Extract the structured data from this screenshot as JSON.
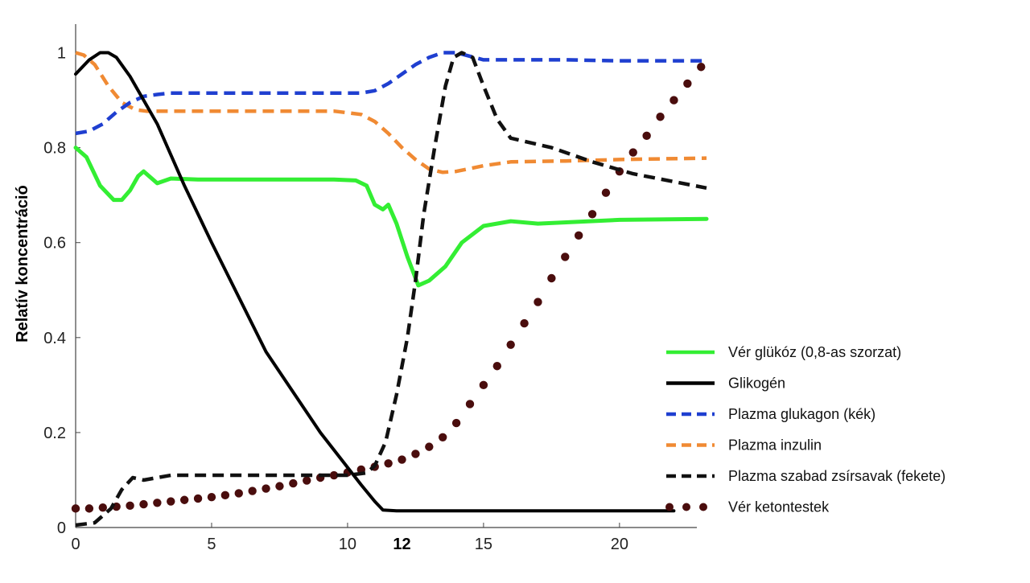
{
  "chart_data": {
    "type": "line",
    "title": "",
    "xlabel": "",
    "ylabel": "Relatív koncentráció",
    "xlim": [
      0,
      23.2
    ],
    "ylim": [
      0,
      1.05
    ],
    "x_ticks": [
      0,
      5,
      10,
      15,
      20
    ],
    "x_tick_labels": [
      "0",
      "5",
      "10",
      "15",
      "20"
    ],
    "x_marker": {
      "value": 12,
      "label": "12"
    },
    "y_ticks": [
      0,
      0.2,
      0.4,
      0.6,
      0.8,
      1
    ],
    "y_tick_labels": [
      "0",
      "0.2",
      "0.4",
      "0.6",
      "0.8",
      "1"
    ],
    "grid": false,
    "legend_position": "right",
    "series": [
      {
        "name": "Vér glükóz (0,8-as szorzat)",
        "color": "#33ee33",
        "style": "solid",
        "x": [
          0,
          0.4,
          0.9,
          1.4,
          1.7,
          2.0,
          2.3,
          2.5,
          2.7,
          3.0,
          3.5,
          4.5,
          7,
          9.5,
          10.3,
          10.7,
          11.0,
          11.3,
          11.5,
          11.8,
          12.2,
          12.6,
          13.0,
          13.6,
          14.2,
          15.0,
          16.0,
          17.0,
          20.0,
          23.2
        ],
        "y": [
          0.8,
          0.78,
          0.72,
          0.69,
          0.69,
          0.71,
          0.74,
          0.75,
          0.74,
          0.725,
          0.735,
          0.733,
          0.733,
          0.733,
          0.731,
          0.72,
          0.68,
          0.67,
          0.68,
          0.64,
          0.57,
          0.51,
          0.52,
          0.55,
          0.6,
          0.635,
          0.645,
          0.64,
          0.648,
          0.65
        ]
      },
      {
        "name": "Glikogén",
        "color": "#000000",
        "style": "solid",
        "x": [
          0,
          0.5,
          0.9,
          1.2,
          1.5,
          2.0,
          3.0,
          4.0,
          5.0,
          7.0,
          9.0,
          10.5,
          11.0,
          11.3,
          11.8,
          12.5,
          14.0,
          18.0,
          21.0,
          22.0
        ],
        "y": [
          0.955,
          0.985,
          1.0,
          1.0,
          0.99,
          0.95,
          0.85,
          0.72,
          0.6,
          0.37,
          0.2,
          0.09,
          0.055,
          0.037,
          0.035,
          0.035,
          0.035,
          0.035,
          0.035,
          0.035
        ]
      },
      {
        "name": "Plazma glukagon (kék)",
        "color": "#1f3fd0",
        "style": "dashed",
        "x": [
          0,
          0.5,
          1.0,
          1.5,
          2.0,
          2.5,
          3.0,
          3.5,
          5,
          8,
          10.5,
          11.0,
          11.5,
          12.0,
          12.5,
          13.0,
          13.5,
          14.0,
          15.0,
          18.0,
          20.0,
          23.2
        ],
        "y": [
          0.83,
          0.835,
          0.85,
          0.875,
          0.895,
          0.908,
          0.912,
          0.915,
          0.915,
          0.915,
          0.915,
          0.92,
          0.935,
          0.955,
          0.975,
          0.99,
          1.0,
          1.0,
          0.985,
          0.985,
          0.983,
          0.983
        ]
      },
      {
        "name": "Plazma inzulin",
        "color": "#f08a33",
        "style": "dashed",
        "x": [
          0,
          0.3,
          0.7,
          1.2,
          1.7,
          2.2,
          2.6,
          3.5,
          6,
          9.5,
          10.5,
          11.0,
          11.5,
          12.0,
          12.5,
          13.0,
          13.5,
          14.0,
          15.0,
          16.0,
          18.0,
          20.0,
          23.2
        ],
        "y": [
          1.0,
          0.995,
          0.975,
          0.93,
          0.895,
          0.88,
          0.877,
          0.877,
          0.877,
          0.877,
          0.87,
          0.855,
          0.83,
          0.8,
          0.775,
          0.755,
          0.748,
          0.75,
          0.762,
          0.77,
          0.772,
          0.775,
          0.778
        ]
      },
      {
        "name": "Plazma szabad zsírsavak (fekete)",
        "color": "#111111",
        "style": "dashed",
        "x": [
          0,
          0.7,
          1.3,
          1.7,
          2.1,
          2.5,
          3.0,
          3.5,
          4.5,
          7.0,
          10.0,
          10.7,
          11.0,
          11.4,
          11.8,
          12.2,
          12.5,
          12.8,
          13.2,
          13.6,
          13.9,
          14.2,
          14.6,
          15.0,
          15.5,
          16.0,
          17.5,
          19.0,
          20.5,
          23.2
        ],
        "y": [
          0.005,
          0.01,
          0.04,
          0.08,
          0.105,
          0.1,
          0.105,
          0.11,
          0.11,
          0.11,
          0.11,
          0.115,
          0.13,
          0.18,
          0.28,
          0.4,
          0.52,
          0.66,
          0.8,
          0.93,
          0.99,
          1.0,
          0.99,
          0.93,
          0.86,
          0.82,
          0.8,
          0.77,
          0.745,
          0.715
        ]
      },
      {
        "name": "Vér ketontestek",
        "color": "#4a0d0d",
        "style": "dotted",
        "x": [
          0,
          0.5,
          1.0,
          1.5,
          2.0,
          2.5,
          3.0,
          3.5,
          4.0,
          4.5,
          5.0,
          5.5,
          6.0,
          6.5,
          7.0,
          7.5,
          8.0,
          8.5,
          9.0,
          9.5,
          10.0,
          10.5,
          11.0,
          11.5,
          12.0,
          12.5,
          13.0,
          13.5,
          14.0,
          14.5,
          15.0,
          15.5,
          16.0,
          16.5,
          17.0,
          17.5,
          18.0,
          18.5,
          19.0,
          19.5,
          20.0,
          20.5,
          21.0,
          21.5,
          22.0,
          22.5,
          23.0
        ],
        "y": [
          0.04,
          0.04,
          0.042,
          0.044,
          0.046,
          0.049,
          0.052,
          0.055,
          0.058,
          0.061,
          0.064,
          0.068,
          0.072,
          0.077,
          0.082,
          0.087,
          0.093,
          0.099,
          0.105,
          0.11,
          0.116,
          0.122,
          0.128,
          0.135,
          0.143,
          0.155,
          0.17,
          0.19,
          0.22,
          0.26,
          0.3,
          0.34,
          0.385,
          0.43,
          0.475,
          0.525,
          0.57,
          0.615,
          0.66,
          0.705,
          0.75,
          0.79,
          0.825,
          0.865,
          0.9,
          0.935,
          0.97
        ]
      }
    ]
  }
}
